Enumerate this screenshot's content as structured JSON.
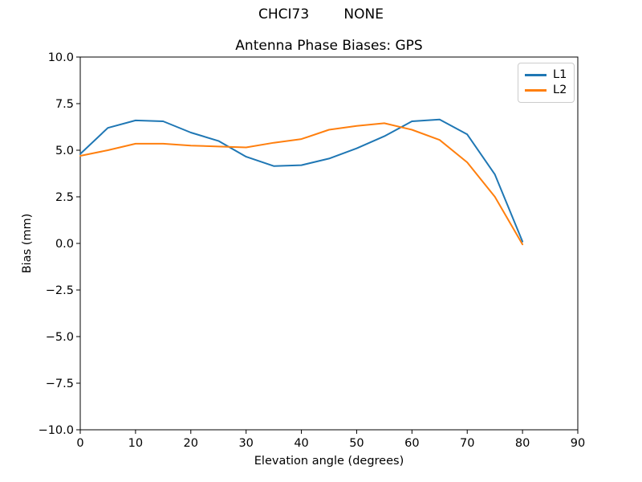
{
  "figure": {
    "suptitle": "CHCI73        NONE",
    "background": "#ffffff"
  },
  "chart_data": {
    "type": "line",
    "title": "Antenna Phase Biases: GPS",
    "xlabel": "Elevation angle (degrees)",
    "ylabel": "Bias (mm)",
    "xlim": [
      0,
      90
    ],
    "ylim": [
      -10,
      10
    ],
    "grid": false,
    "legend_position": "upper right",
    "axis_color": "#000000",
    "xticks": [
      {
        "value": 0,
        "label": "0"
      },
      {
        "value": 10,
        "label": "10"
      },
      {
        "value": 20,
        "label": "20"
      },
      {
        "value": 30,
        "label": "30"
      },
      {
        "value": 40,
        "label": "40"
      },
      {
        "value": 50,
        "label": "50"
      },
      {
        "value": 60,
        "label": "60"
      },
      {
        "value": 70,
        "label": "70"
      },
      {
        "value": 80,
        "label": "80"
      },
      {
        "value": 90,
        "label": "90"
      }
    ],
    "yticks": [
      {
        "value": -10,
        "label": "−10.0"
      },
      {
        "value": -7.5,
        "label": "−7.5"
      },
      {
        "value": -5,
        "label": "−5.0"
      },
      {
        "value": -2.5,
        "label": "−2.5"
      },
      {
        "value": 0,
        "label": "0.0"
      },
      {
        "value": 2.5,
        "label": "2.5"
      },
      {
        "value": 5,
        "label": "5.0"
      },
      {
        "value": 7.5,
        "label": "7.5"
      },
      {
        "value": 10,
        "label": "10.0"
      }
    ],
    "x": [
      0,
      5,
      10,
      15,
      20,
      25,
      30,
      35,
      40,
      45,
      50,
      55,
      60,
      65,
      70,
      75,
      80
    ],
    "series": [
      {
        "name": "L1",
        "color": "#1f77b4",
        "values": [
          4.8,
          6.2,
          6.6,
          6.55,
          5.95,
          5.5,
          4.65,
          4.15,
          4.2,
          4.55,
          5.1,
          5.75,
          6.55,
          6.65,
          5.85,
          3.7,
          0.1
        ]
      },
      {
        "name": "L2",
        "color": "#ff7f0e",
        "values": [
          4.7,
          5.0,
          5.35,
          5.35,
          5.25,
          5.2,
          5.15,
          5.4,
          5.6,
          6.1,
          6.3,
          6.45,
          6.1,
          5.55,
          4.35,
          2.5,
          -0.05
        ]
      }
    ]
  }
}
